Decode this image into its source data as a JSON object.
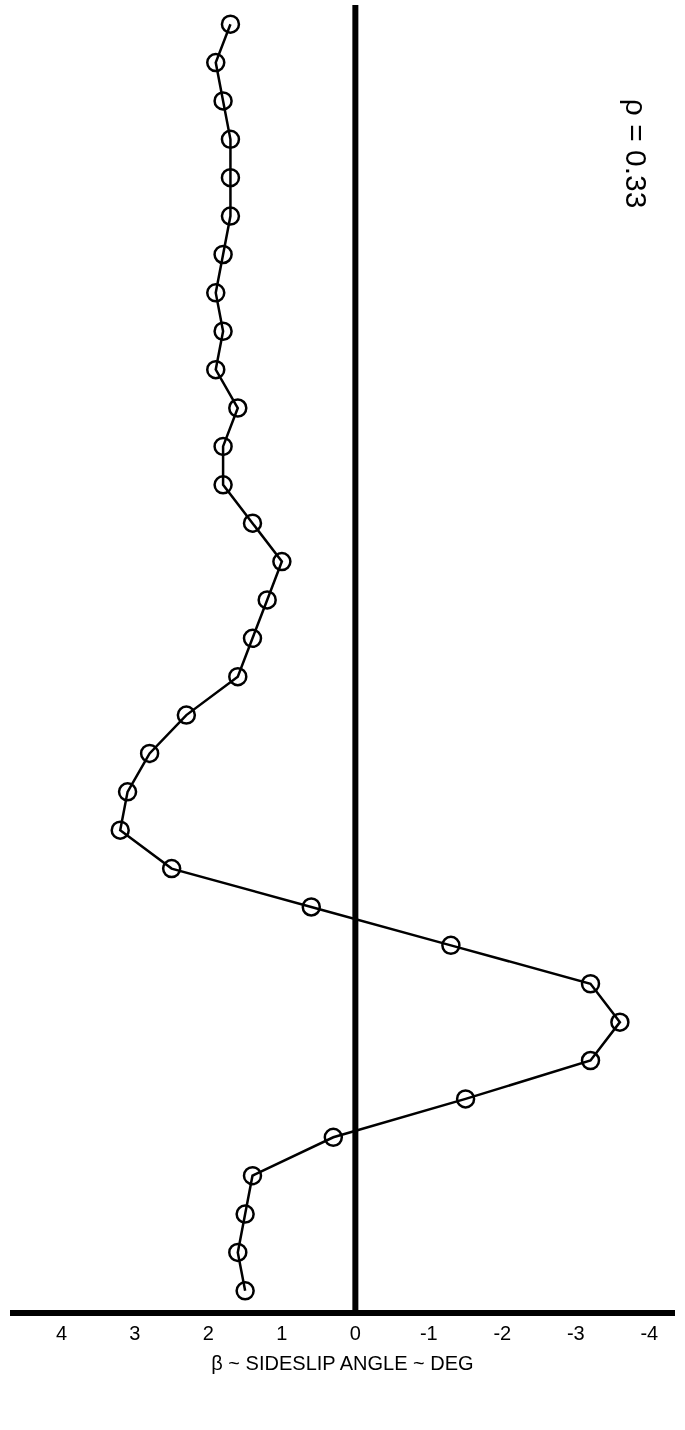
{
  "chart_data": {
    "type": "line",
    "orientation": "horizontal",
    "categories": [
      null,
      null,
      null,
      null,
      null,
      null,
      null,
      null,
      null,
      null,
      null,
      null,
      null,
      null,
      null,
      null,
      null,
      null,
      null,
      null,
      null,
      null,
      null,
      null,
      null,
      null,
      null,
      null,
      null,
      null,
      null,
      null,
      null,
      null
    ],
    "series": [
      {
        "color": "#000000",
        "values": [
          1.7,
          1.9,
          1.8,
          1.7,
          1.7,
          1.7,
          1.8,
          1.9,
          1.8,
          1.9,
          1.6,
          1.8,
          1.8,
          1.4,
          1.0,
          1.2,
          1.4,
          1.6,
          2.3,
          2.8,
          3.1,
          3.2,
          2.5,
          0.6,
          -1.3,
          -3.2,
          -3.6,
          -3.2,
          -1.5,
          0.3,
          1.4,
          1.5,
          1.6,
          1.5
        ]
      }
    ],
    "xlabel": "β ~ SIDESLIP ANGLE ~ DEG",
    "annotations": [
      "ρ = 0.33"
    ],
    "xlim": [
      4.7,
      -4.35
    ],
    "xticks": [
      4,
      3,
      2,
      1,
      0,
      -1,
      -2,
      -3,
      -4
    ],
    "ref_lines": [
      {
        "axis": "x",
        "value": 0,
        "color": "#000000"
      }
    ],
    "marker": "circle",
    "line_style": "solid"
  }
}
